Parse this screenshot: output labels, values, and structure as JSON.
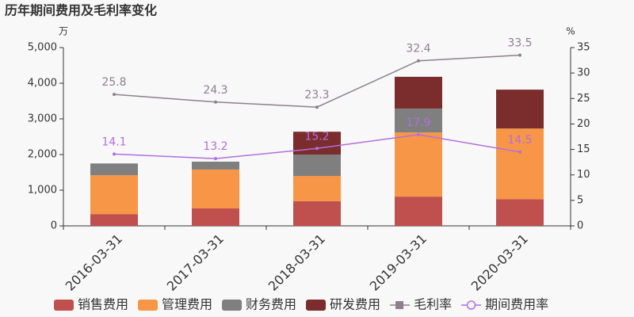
{
  "chart_data": {
    "type": "bar-line",
    "title": "历年期间费用及毛利率变化",
    "y_unit": "万",
    "y2_unit": "%",
    "categories": [
      "2016-03-31",
      "2017-03-31",
      "2018-03-31",
      "2019-03-31",
      "2020-03-31"
    ],
    "series": [
      {
        "name": "销售费用",
        "type": "bar",
        "color": "#c0504d",
        "values": [
          330,
          490,
          690,
          820,
          750
        ]
      },
      {
        "name": "管理费用",
        "type": "bar",
        "color": "#f79646",
        "values": [
          1090,
          1090,
          710,
          1800,
          1980
        ]
      },
      {
        "name": "财务费用",
        "type": "bar",
        "color": "#7f7f7f",
        "values": [
          330,
          220,
          600,
          670,
          0
        ]
      },
      {
        "name": "研发费用",
        "type": "bar",
        "color": "#7b2c2c",
        "values": [
          0,
          0,
          640,
          890,
          1090
        ]
      },
      {
        "name": "毛利率",
        "type": "line",
        "axis": "y2",
        "marker": "square",
        "color": "#8e7f8f",
        "values": [
          25.8,
          24.3,
          23.3,
          32.4,
          33.5
        ]
      },
      {
        "name": "期间费用率",
        "type": "line",
        "axis": "y2",
        "marker": "circle",
        "color": "#b36ee0",
        "values": [
          14.1,
          13.2,
          15.2,
          17.9,
          14.5
        ]
      }
    ],
    "ylim": [
      0,
      5000
    ],
    "yticks": [
      0,
      {
        "value": 1000,
        "label": "1,000"
      },
      {
        "value": 2000,
        "label": "2,000"
      },
      {
        "value": 3000,
        "label": "3,000"
      },
      {
        "value": 4000,
        "label": "4,000"
      },
      {
        "value": 5000,
        "label": "5,000"
      }
    ],
    "y2lim": [
      0,
      35
    ],
    "y2ticks": [
      0,
      5,
      10,
      15,
      20,
      25,
      30,
      35
    ]
  }
}
